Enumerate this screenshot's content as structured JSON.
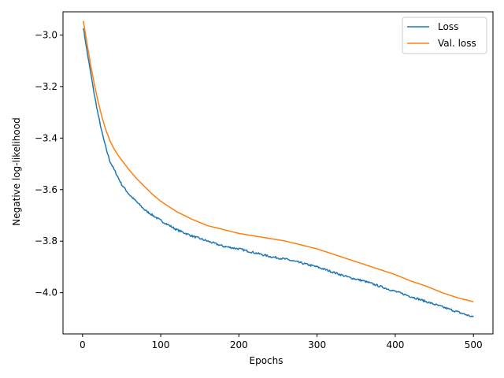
{
  "chart_data": {
    "type": "line",
    "title": "",
    "xlabel": "Epochs",
    "ylabel": "Negative log-likelihood",
    "xlim": [
      -25,
      525
    ],
    "ylim": [
      -4.16,
      -2.91
    ],
    "xticks": [
      0,
      100,
      200,
      300,
      400,
      500
    ],
    "yticks": [
      -3.0,
      -3.2,
      -3.4,
      -3.6,
      -3.8,
      -4.0
    ],
    "xtick_labels": [
      "0",
      "100",
      "200",
      "300",
      "400",
      "500"
    ],
    "ytick_labels": [
      "−3.0",
      "−3.2",
      "−3.4",
      "−3.6",
      "−3.8",
      "−4.0"
    ],
    "grid": false,
    "legend": {
      "placement": "top-right",
      "entries": [
        "Loss",
        "Val. loss"
      ]
    },
    "series": [
      {
        "name": "Loss",
        "color": "#1f77b4",
        "x": [
          1,
          5,
          10,
          15,
          20,
          25,
          30,
          35,
          40,
          45,
          50,
          60,
          70,
          80,
          90,
          100,
          120,
          140,
          160,
          180,
          200,
          220,
          240,
          260,
          280,
          300,
          320,
          340,
          360,
          380,
          400,
          420,
          440,
          460,
          480,
          500
        ],
        "y": [
          -2.97,
          -3.05,
          -3.14,
          -3.23,
          -3.31,
          -3.38,
          -3.44,
          -3.49,
          -3.52,
          -3.55,
          -3.58,
          -3.62,
          -3.65,
          -3.68,
          -3.7,
          -3.72,
          -3.755,
          -3.78,
          -3.8,
          -3.82,
          -3.83,
          -3.845,
          -3.86,
          -3.87,
          -3.885,
          -3.9,
          -3.92,
          -3.94,
          -3.955,
          -3.975,
          -3.995,
          -4.015,
          -4.035,
          -4.055,
          -4.075,
          -4.095
        ]
      },
      {
        "name": "Val. loss",
        "color": "#ff7f0e",
        "x": [
          1,
          5,
          10,
          15,
          20,
          25,
          30,
          35,
          40,
          45,
          50,
          60,
          70,
          80,
          90,
          100,
          120,
          140,
          160,
          180,
          200,
          220,
          240,
          260,
          280,
          300,
          320,
          340,
          360,
          380,
          400,
          420,
          440,
          460,
          480,
          500
        ],
        "y": [
          -2.945,
          -3.02,
          -3.11,
          -3.19,
          -3.26,
          -3.32,
          -3.37,
          -3.41,
          -3.44,
          -3.465,
          -3.485,
          -3.525,
          -3.56,
          -3.59,
          -3.62,
          -3.645,
          -3.685,
          -3.715,
          -3.74,
          -3.755,
          -3.77,
          -3.78,
          -3.79,
          -3.8,
          -3.815,
          -3.83,
          -3.85,
          -3.87,
          -3.89,
          -3.91,
          -3.93,
          -3.955,
          -3.975,
          -4.0,
          -4.02,
          -4.035
        ]
      }
    ]
  }
}
